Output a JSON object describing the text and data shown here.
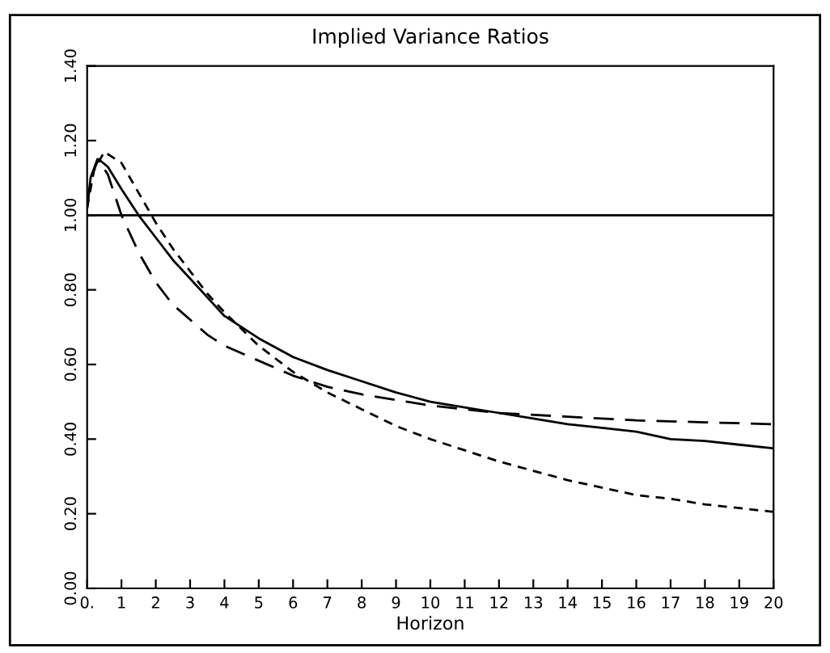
{
  "chart_data": {
    "type": "line",
    "title": "Implied Variance Ratios",
    "xlabel": "Horizon",
    "xlim": [
      0,
      20
    ],
    "xticks": [
      {
        "value": 0,
        "label": "0."
      },
      1,
      2,
      3,
      4,
      5,
      6,
      7,
      8,
      9,
      10,
      11,
      12,
      13,
      14,
      15,
      16,
      17,
      18,
      19,
      20
    ],
    "ylim": [
      0,
      1.4
    ],
    "yticks": [
      {
        "value": 0,
        "label": "0.00"
      },
      {
        "value": 0.2,
        "label": "0.20"
      },
      {
        "value": 0.4,
        "label": "0.40"
      },
      {
        "value": 0.6,
        "label": "0.60"
      },
      {
        "value": 0.8,
        "label": "0.80"
      },
      {
        "value": 1.0,
        "label": "1.00"
      },
      {
        "value": 1.2,
        "label": "1.20"
      },
      {
        "value": 1.4,
        "label": "1.40"
      }
    ],
    "grid": false,
    "legend": false,
    "marker": "none",
    "ref_lines": [
      {
        "axis": "y",
        "value": 1.0,
        "color": "#000000",
        "line_style": "solid"
      }
    ],
    "series": [
      {
        "color": "#000000",
        "line_style": "solid",
        "x": [
          0,
          0.1,
          0.33,
          0.6,
          1,
          1.5,
          2,
          2.5,
          3,
          3.5,
          4,
          5,
          6,
          7,
          8,
          9,
          10,
          11,
          12,
          13,
          14,
          15,
          16,
          17,
          18,
          19,
          20
        ],
        "values": [
          1.02,
          1.1,
          1.15,
          1.13,
          1.07,
          1.0,
          0.94,
          0.88,
          0.83,
          0.78,
          0.73,
          0.67,
          0.62,
          0.585,
          0.555,
          0.525,
          0.5,
          0.485,
          0.47,
          0.455,
          0.44,
          0.43,
          0.42,
          0.4,
          0.395,
          0.385,
          0.375
        ]
      },
      {
        "color": "#000000",
        "line_style": "dashed",
        "x": [
          0,
          0.1,
          0.3,
          0.6,
          1,
          1.5,
          2,
          2.5,
          3,
          3.5,
          4,
          5,
          6,
          7,
          8,
          9,
          10,
          11,
          12,
          14,
          16,
          18,
          20
        ],
        "values": [
          1.02,
          1.1,
          1.15,
          1.11,
          1.0,
          0.9,
          0.82,
          0.76,
          0.72,
          0.68,
          0.65,
          0.61,
          0.57,
          0.54,
          0.52,
          0.505,
          0.49,
          0.48,
          0.47,
          0.46,
          0.45,
          0.445,
          0.44
        ]
      },
      {
        "color": "#000000",
        "line_style": "dotted",
        "x": [
          0,
          0.2,
          0.5,
          1,
          1.5,
          2,
          2.5,
          3,
          3.5,
          4,
          5,
          6,
          7,
          8,
          9,
          10,
          11,
          12,
          13,
          14,
          15,
          16,
          17,
          18,
          19,
          20
        ],
        "values": [
          1.02,
          1.12,
          1.17,
          1.14,
          1.06,
          0.98,
          0.91,
          0.85,
          0.79,
          0.74,
          0.65,
          0.58,
          0.525,
          0.48,
          0.435,
          0.4,
          0.37,
          0.34,
          0.315,
          0.29,
          0.27,
          0.25,
          0.24,
          0.225,
          0.215,
          0.205
        ]
      }
    ]
  }
}
